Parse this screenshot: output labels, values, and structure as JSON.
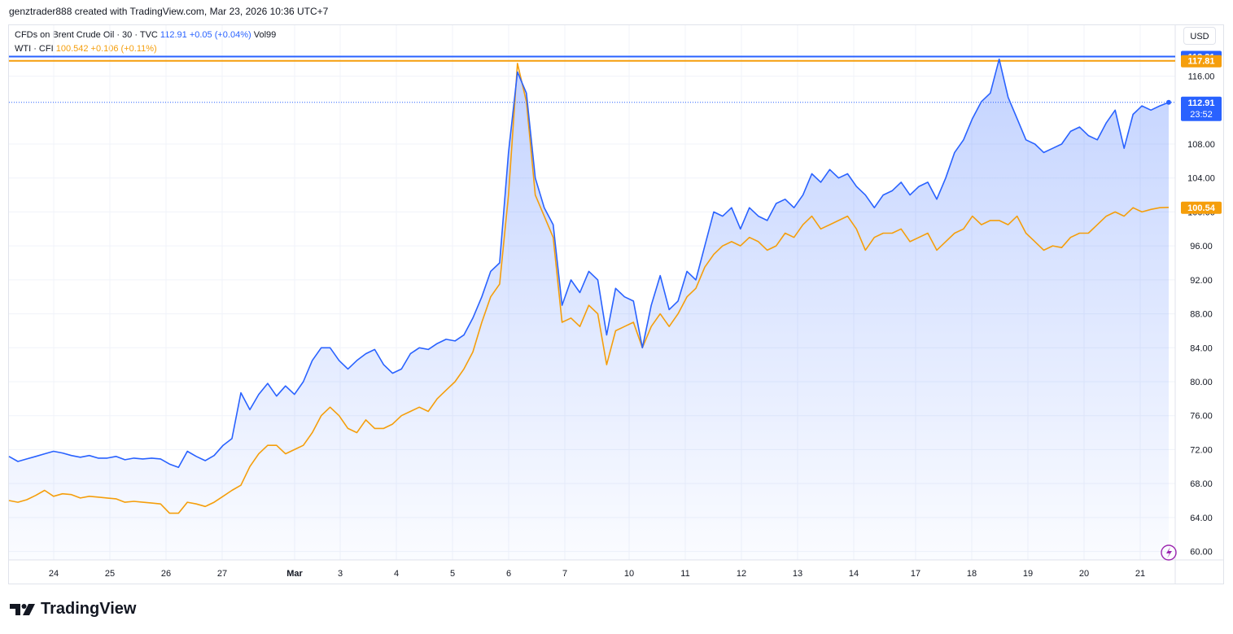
{
  "caption": "genztrader888 created with TradingView.com, Mar 23, 2026 10:36 UTC+7",
  "legend": {
    "brent": {
      "name": "CFDs on Brent Crude Oil · 30 · TVC",
      "price": "112.91",
      "change": "+0.05 (+0.04%)",
      "vol": "Vol99"
    },
    "wti": {
      "name": "WTI · CFI",
      "price": "100.542",
      "change": "+0.106 (+0.11%)"
    }
  },
  "currency": "USD",
  "brand": "TradingView",
  "colors": {
    "brent": "#2962ff",
    "wti": "#f59e0b",
    "grid": "#f0f3fa",
    "text": "#131722"
  },
  "icons": [
    "tradingview-logo-icon",
    "lightning-icon"
  ],
  "price_labels": {
    "brent_high": "118.31",
    "wti_high": "117.81",
    "brent_last": "112.91",
    "countdown": "23:52",
    "wti_last": "100.54"
  },
  "chart_data": {
    "type": "line",
    "ylim": [
      59,
      122
    ],
    "grid": true,
    "y_ticks": [
      "116.00",
      "108.00",
      "104.00",
      "100.00",
      "96.00",
      "92.00",
      "88.00",
      "84.00",
      "80.00",
      "76.00",
      "72.00",
      "68.00",
      "64.00",
      "60.00"
    ],
    "x_ticks": [
      "24",
      "25",
      "26",
      "27",
      "Mar",
      "3",
      "4",
      "5",
      "6",
      "7",
      "10",
      "11",
      "12",
      "13",
      "14",
      "17",
      "18",
      "19",
      "20",
      "21"
    ],
    "series": [
      {
        "name": "CFDs on Brent Crude Oil",
        "values": [
          71.2,
          70.6,
          70.9,
          71.2,
          71.5,
          71.8,
          71.6,
          71.3,
          71.1,
          71.3,
          71.0,
          71.0,
          71.2,
          70.8,
          71.0,
          70.9,
          71.0,
          70.9,
          70.3,
          69.9,
          71.8,
          71.2,
          70.7,
          71.3,
          72.5,
          73.3,
          78.7,
          76.7,
          78.5,
          79.8,
          78.3,
          79.5,
          78.5,
          80.0,
          82.5,
          84.0,
          84.0,
          82.5,
          81.5,
          82.5,
          83.3,
          83.8,
          82.0,
          81.0,
          81.5,
          83.3,
          84.0,
          83.8,
          84.5,
          85.0,
          84.8,
          85.5,
          87.5,
          90.0,
          93.0,
          94.0,
          107.0,
          116.5,
          114.0,
          104.0,
          100.5,
          98.5,
          89.0,
          92.0,
          90.5,
          93.0,
          92.0,
          85.5,
          91.0,
          90.0,
          89.5,
          84.0,
          89.0,
          92.5,
          88.5,
          89.5,
          93.0,
          92.0,
          96.0,
          100.0,
          99.5,
          100.5,
          98.0,
          100.5,
          99.5,
          99.0,
          101.0,
          101.5,
          100.5,
          102.0,
          104.5,
          103.5,
          105.0,
          104.0,
          104.5,
          103.0,
          102.0,
          100.5,
          102.0,
          102.5,
          103.5,
          102.0,
          103.0,
          103.5,
          101.5,
          104.0,
          107.0,
          108.5,
          111.0,
          113.0,
          114.0,
          118.0,
          113.5,
          111.0,
          108.5,
          108.0,
          107.0,
          107.5,
          108.0,
          109.5,
          110.0,
          109.0,
          108.5,
          110.5,
          112.0,
          107.5,
          111.5,
          112.5,
          112.0,
          112.5,
          112.91
        ]
      },
      {
        "name": "WTI",
        "values": [
          66.0,
          65.8,
          66.1,
          66.6,
          67.2,
          66.5,
          66.8,
          66.7,
          66.3,
          66.5,
          66.4,
          66.3,
          66.2,
          65.8,
          65.9,
          65.8,
          65.7,
          65.6,
          64.5,
          64.5,
          65.8,
          65.6,
          65.3,
          65.8,
          66.5,
          67.2,
          67.8,
          70.0,
          71.5,
          72.5,
          72.5,
          71.5,
          72.0,
          72.5,
          74.0,
          76.0,
          77.0,
          76.0,
          74.5,
          74.0,
          75.5,
          74.5,
          74.5,
          75.0,
          76.0,
          76.5,
          77.0,
          76.5,
          78.0,
          79.0,
          80.0,
          81.5,
          83.5,
          87.0,
          90.0,
          91.5,
          102.0,
          117.5,
          113.0,
          102.0,
          99.5,
          97.0,
          87.0,
          87.5,
          86.5,
          89.0,
          88.0,
          82.0,
          86.0,
          86.5,
          87.0,
          84.0,
          86.5,
          88.0,
          86.5,
          88.0,
          90.0,
          91.0,
          93.5,
          95.0,
          96.0,
          96.5,
          96.0,
          97.0,
          96.5,
          95.5,
          96.0,
          97.5,
          97.0,
          98.5,
          99.5,
          98.0,
          98.5,
          99.0,
          99.5,
          98.0,
          95.5,
          97.0,
          97.5,
          97.5,
          98.0,
          96.5,
          97.0,
          97.5,
          95.5,
          96.5,
          97.5,
          98.0,
          99.5,
          98.5,
          99.0,
          99.0,
          98.5,
          99.5,
          97.5,
          96.5,
          95.5,
          96.0,
          95.8,
          97.0,
          97.5,
          97.5,
          98.5,
          99.5,
          100.0,
          99.5,
          100.5,
          100.0,
          100.3,
          100.5,
          100.542
        ]
      }
    ]
  }
}
